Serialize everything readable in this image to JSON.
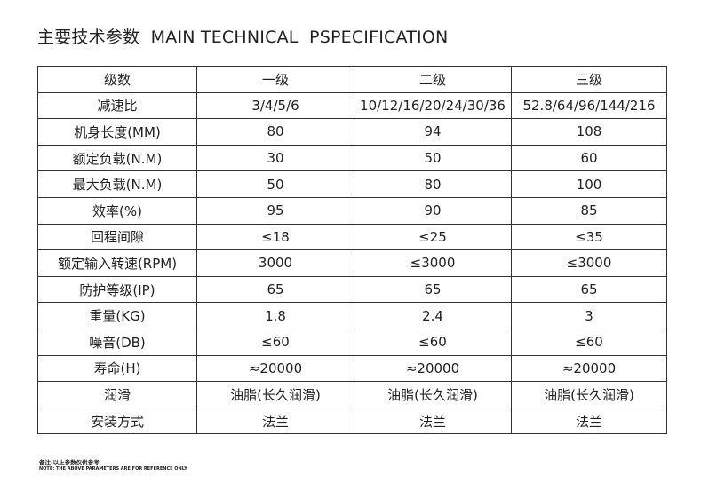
{
  "header": {
    "title": "主要技术参数  MAIN TECHNICAL  PSPECIFICATION"
  },
  "table": {
    "columns": [
      "级数",
      "一级",
      "二级",
      "三级"
    ],
    "rows": [
      [
        "减速比",
        "3/4/5/6",
        "10/12/16/20/24/30/36",
        "52.8/64/96/144/216"
      ],
      [
        "机身长度(MM)",
        "80",
        "94",
        "108"
      ],
      [
        "额定负载(N.M)",
        "30",
        "50",
        "60"
      ],
      [
        "最大负载(N.M)",
        "50",
        "80",
        "100"
      ],
      [
        "效率(%)",
        "95",
        "90",
        "85"
      ],
      [
        "回程间隙",
        "≤18",
        "≤25",
        "≤35"
      ],
      [
        "额定输入转速(RPM)",
        "3000",
        "≤3000",
        "≤3000"
      ],
      [
        "防护等级(IP)",
        "65",
        "65",
        "65"
      ],
      [
        "重量(KG)",
        "1.8",
        "2.4",
        "3"
      ],
      [
        "噪音(DB)",
        "≤60",
        "≤60",
        "≤60"
      ],
      [
        "寿命(H)",
        "≈20000",
        "≈20000",
        "≈20000"
      ],
      [
        "润滑",
        "油脂(长久润滑)",
        "油脂(长久润滑)",
        "油脂(长久润滑)"
      ],
      [
        "安装方式",
        "法兰",
        "法兰",
        "法兰"
      ]
    ]
  },
  "notes": [
    "备注:以上参数仅供参考",
    "NOTE: THE ABOVE PARAMETERS ARE FOR REFERENCE ONLY"
  ]
}
